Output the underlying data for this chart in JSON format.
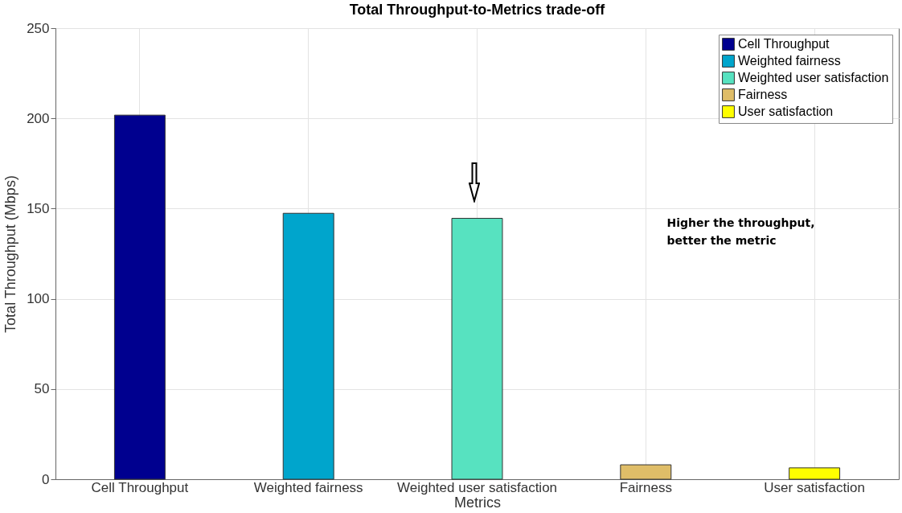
{
  "chart_data": {
    "type": "bar",
    "title": "Total Throughput-to-Metrics trade-off",
    "xlabel": "Metrics",
    "ylabel": "Total Throughput (Mbps)",
    "categories": [
      "Cell Throughput",
      "Weighted fairness",
      "Weighted user satisfaction",
      "Fairness",
      "User satisfaction"
    ],
    "series": [
      {
        "name": "Cell Throughput",
        "color": "#00008f",
        "values": [
          201.8,
          null,
          null,
          null,
          null
        ]
      },
      {
        "name": "Weighted fairness",
        "color": "#00a5cc",
        "values": [
          null,
          147.4,
          null,
          null,
          null
        ]
      },
      {
        "name": "Weighted user satisfaction",
        "color": "#57e2c0",
        "values": [
          null,
          null,
          144.6,
          null,
          null
        ]
      },
      {
        "name": "Fairness",
        "color": "#dfbd68",
        "values": [
          null,
          null,
          null,
          8.0,
          null
        ]
      },
      {
        "name": "User satisfaction",
        "color": "#ffff00",
        "values": [
          null,
          null,
          null,
          null,
          6.3
        ]
      }
    ],
    "ylim": [
      0,
      250
    ],
    "yticks": [
      0,
      50,
      100,
      150,
      200,
      250
    ],
    "grid": true,
    "legend": "top right",
    "annotations": [
      "Higher the throughput, better the metric"
    ]
  }
}
